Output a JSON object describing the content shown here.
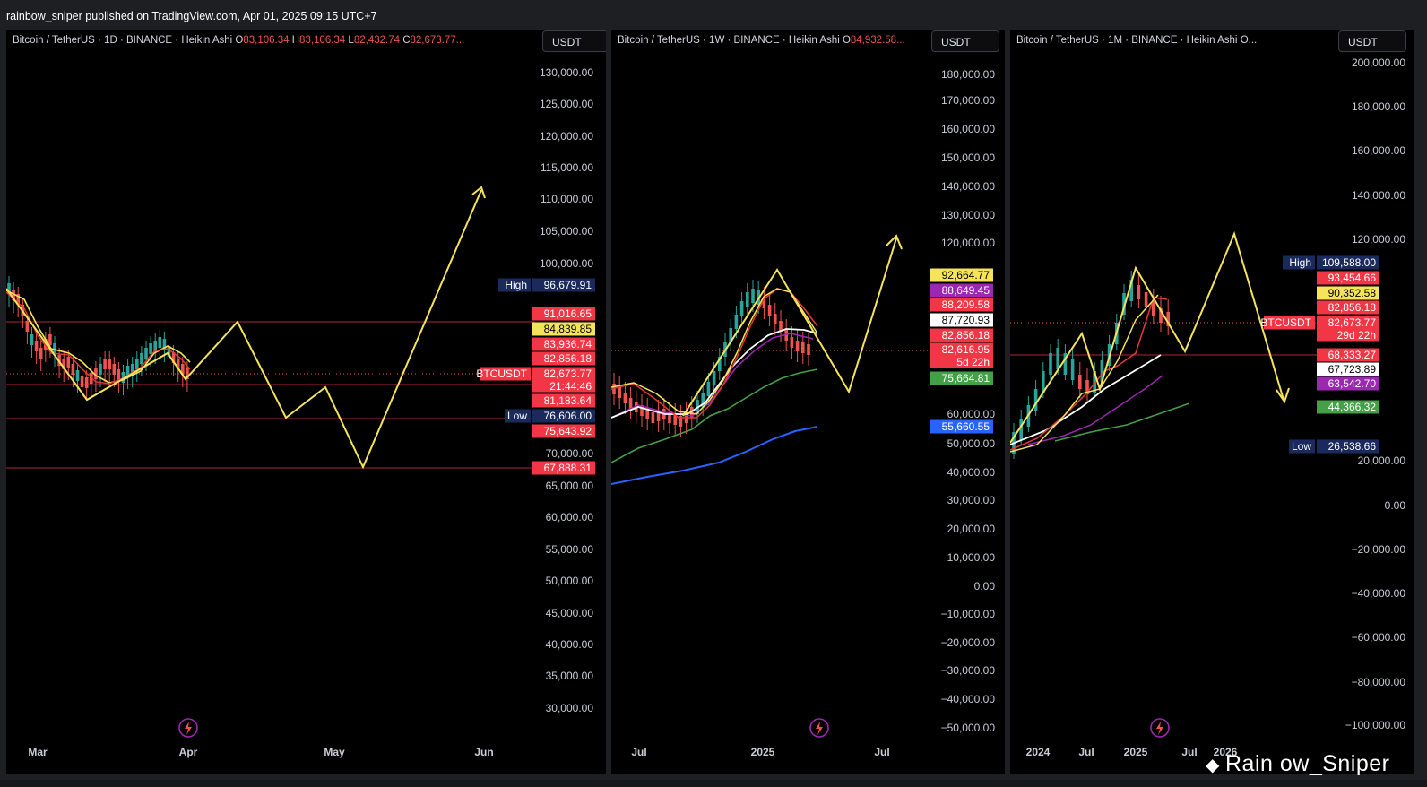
{
  "topbar": {
    "text": "rainbow_sniper published on TradingView.com, Apr 01, 2025 09:15 UTC+7"
  },
  "watermark": {
    "text": "Rain  ow_Sniper",
    "icon": "binance-logo-icon"
  },
  "colors": {
    "up": "#26a69a",
    "down": "#ef5350",
    "ma_yellow": "#f5e35a",
    "ma_red": "#e53935",
    "ma_white": "#ffffff",
    "ma_purple": "#9c27b0",
    "ma_green": "#43a047",
    "ma_blue": "#2962ff",
    "high_tag": "#1b2a5c",
    "level_line": "#8b1e2a"
  },
  "panels": [
    {
      "title": {
        "symbol": "Bitcoin / TetherUS · 1D · BINANCE · Heikin Ashi",
        "ohlc": [
          {
            "k": "O",
            "v": "83,106.34"
          },
          {
            "k": "H",
            "v": "83,106.34"
          },
          {
            "k": "L",
            "v": "82,432.74"
          },
          {
            "k": "C",
            "v": "82,673.77..."
          }
        ]
      },
      "currency": "USDT",
      "y_ticks": [
        "130,000.00",
        "125,000.00",
        "120,000.00",
        "115,000.00",
        "110,000.00",
        "105,000.00",
        "100,000.00",
        "95,000.00",
        "70,000.00",
        "65,000.00",
        "60,000.00",
        "55,000.00",
        "50,000.00",
        "45,000.00",
        "40,000.00",
        "35,000.00",
        "30,000.00"
      ],
      "x_ticks": [
        "Mar",
        "Apr",
        "May",
        "Jun"
      ],
      "tags": [
        {
          "label": "High",
          "value": "96,679.91",
          "kind": "high"
        },
        {
          "value": "91,016.65",
          "kind": "red"
        },
        {
          "value": "84,839.85",
          "kind": "yellow"
        },
        {
          "value": "83,936.74",
          "kind": "red"
        },
        {
          "value": "82,856.18",
          "kind": "red"
        },
        {
          "label": "BTCUSDT",
          "value": "82,673.77",
          "sub": "21:44:46",
          "kind": "price"
        },
        {
          "value": "81,183.64",
          "kind": "red"
        },
        {
          "label": "Low",
          "value": "76,606.00",
          "kind": "high"
        },
        {
          "value": "75,643.92",
          "kind": "red"
        },
        {
          "value": "67,888.31",
          "kind": "red"
        }
      ]
    },
    {
      "title": {
        "symbol": "Bitcoin / TetherUS · 1W · BINANCE · Heikin Ashi",
        "ohlc": [
          {
            "k": "O",
            "v": "84,932.58..."
          }
        ]
      },
      "currency": "USDT",
      "y_ticks": [
        "180,000.00",
        "170,000.00",
        "160,000.00",
        "150,000.00",
        "140,000.00",
        "130,000.00",
        "120,000.00",
        "60,000.00",
        "50,000.00",
        "40,000.00",
        "30,000.00",
        "20,000.00",
        "10,000.00",
        "0.00",
        "−10,000.00",
        "−20,000.00",
        "−30,000.00",
        "−40,000.00",
        "−50,000.00"
      ],
      "x_ticks": [
        "Jul",
        "2025",
        "Jul"
      ],
      "tags": [
        {
          "value": "92,664.77",
          "kind": "yellow"
        },
        {
          "value": "88,649.45",
          "kind": "purple"
        },
        {
          "value": "88,209.58",
          "kind": "red"
        },
        {
          "value": "87,720.93",
          "kind": "white"
        },
        {
          "value": "82,856.18",
          "kind": "red"
        },
        {
          "value": "82,616.95",
          "sub": "5d 22h",
          "kind": "red"
        },
        {
          "value": "75,664.81",
          "kind": "green"
        },
        {
          "value": "55,660.55",
          "kind": "blue"
        }
      ]
    },
    {
      "title": {
        "symbol": "Bitcoin / TetherUS · 1M · BINANCE · Heikin Ashi",
        "ohlc": [
          {
            "k": "O...",
            "v": ""
          }
        ]
      },
      "currency": "USDT",
      "y_ticks": [
        "200,000.00",
        "180,000.00",
        "160,000.00",
        "140,000.00",
        "120,000.00",
        "20,000.00",
        "0.00",
        "−20,000.00",
        "−40,000.00",
        "−60,000.00",
        "−80,000.00",
        "−100,000.00"
      ],
      "x_ticks": [
        "2024",
        "Jul",
        "2025",
        "Jul",
        "2026"
      ],
      "tags": [
        {
          "label": "High",
          "value": "109,588.00",
          "kind": "high"
        },
        {
          "value": "93,454.66",
          "kind": "red"
        },
        {
          "value": "90,352.58",
          "kind": "yellow"
        },
        {
          "value": "82,856.18",
          "kind": "red"
        },
        {
          "label": "BTCUSDT",
          "value": "82,673.77",
          "sub": "29d 22h",
          "kind": "price"
        },
        {
          "value": "68,333.27",
          "kind": "red"
        },
        {
          "value": "67,723.89",
          "kind": "white"
        },
        {
          "value": "63,542.70",
          "kind": "purple"
        },
        {
          "value": "44,366.32",
          "kind": "green"
        },
        {
          "label": "Low",
          "value": "26,538.66",
          "kind": "high"
        }
      ]
    }
  ]
}
